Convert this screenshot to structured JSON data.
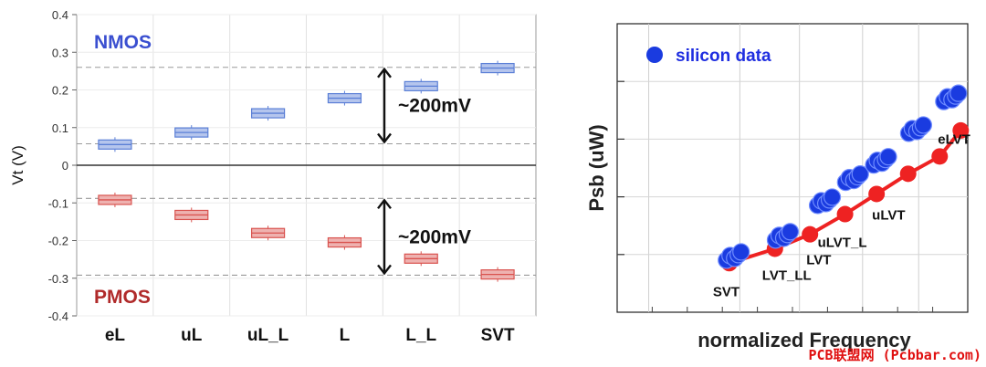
{
  "chart_data": [
    {
      "type": "box",
      "title": "",
      "xlabel": "",
      "ylabel": "Vt (V)",
      "ylim": [
        -0.4,
        0.4
      ],
      "yticks": [
        "0.4",
        "0.3",
        "0.2",
        "0.1",
        "0",
        "-0.1",
        "-0.2",
        "-0.3",
        "-0.4"
      ],
      "ytick_values": [
        0.4,
        0.3,
        0.2,
        0.1,
        0,
        -0.1,
        -0.2,
        -0.3,
        -0.4
      ],
      "categories": [
        "eL",
        "uL",
        "uL_L",
        "L",
        "L_L",
        "SVT"
      ],
      "series": [
        {
          "name": "NMOS",
          "color": "#5b7fd6",
          "values": [
            0.055,
            0.087,
            0.138,
            0.178,
            0.21,
            0.258
          ]
        },
        {
          "name": "PMOS",
          "color": "#d9534f",
          "values": [
            -0.092,
            -0.132,
            -0.18,
            -0.205,
            -0.248,
            -0.29
          ]
        }
      ],
      "reference_lines": [
        0.26,
        0.057,
        -0.088,
        -0.292
      ],
      "annotations": [
        {
          "text": "~200mV",
          "from": 0.26,
          "to": 0.057
        },
        {
          "text": "~200mV",
          "from": -0.088,
          "to": -0.292
        }
      ]
    },
    {
      "type": "scatter",
      "title": "",
      "xlabel": "normalized Frequency",
      "ylabel": "Psb (uW)",
      "legend": {
        "label": "silicon data",
        "position": "top-left"
      },
      "xlim": [
        0,
        1
      ],
      "ylim": [
        0,
        1
      ],
      "series": [
        {
          "name": "silicon data",
          "color": "#1a3be0",
          "x": [
            0.33,
            0.47,
            0.59,
            0.67,
            0.75,
            0.85,
            0.95
          ],
          "y": [
            0.19,
            0.26,
            0.38,
            0.46,
            0.52,
            0.63,
            0.74
          ]
        },
        {
          "name": "fit",
          "color": "#ee2222",
          "x": [
            0.32,
            0.45,
            0.55,
            0.65,
            0.74,
            0.83,
            0.92,
            0.98
          ],
          "y": [
            0.17,
            0.22,
            0.27,
            0.34,
            0.41,
            0.48,
            0.54,
            0.63
          ]
        }
      ],
      "point_labels": [
        {
          "text": "SVT",
          "x": 0.32,
          "y": 0.17
        },
        {
          "text": "LVT_LL",
          "x": 0.45,
          "y": 0.22
        },
        {
          "text": "LVT",
          "x": 0.55,
          "y": 0.27
        },
        {
          "text": "uLVT_L",
          "x": 0.65,
          "y": 0.34
        },
        {
          "text": "uLVT",
          "x": 0.74,
          "y": 0.41
        },
        {
          "text": "eLVT",
          "x": 0.92,
          "y": 0.54
        }
      ]
    }
  ],
  "watermark": "PCB联盟网 (Pcbbar.com)"
}
